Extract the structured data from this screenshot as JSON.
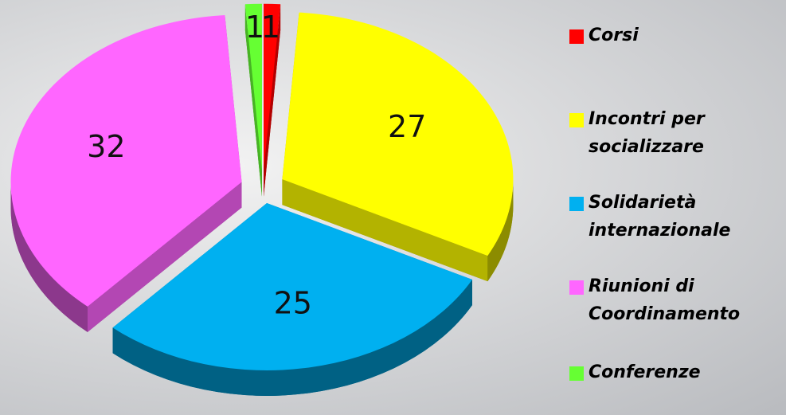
{
  "chart_data": {
    "type": "pie3d",
    "categories": [
      "Corsi",
      "Incontri per socializzare",
      "Solidarietà internazionale",
      "Riunioni di Coordinamento",
      "Conferenze"
    ],
    "values": [
      1,
      27,
      25,
      32,
      1
    ],
    "colors": [
      "#ff0000",
      "#ffff00",
      "#00b0f0",
      "#ff66ff",
      "#66ff33"
    ],
    "legend": "right"
  }
}
